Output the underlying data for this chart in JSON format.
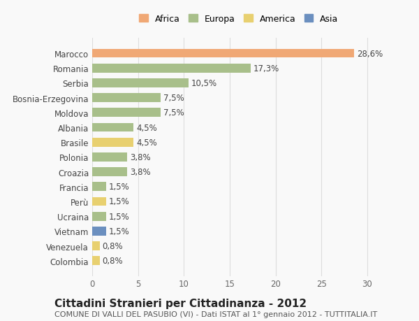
{
  "categories": [
    "Marocco",
    "Romania",
    "Serbia",
    "Bosnia-Erzegovina",
    "Moldova",
    "Albania",
    "Brasile",
    "Polonia",
    "Croazia",
    "Francia",
    "Perù",
    "Ucraina",
    "Vietnam",
    "Venezuela",
    "Colombia"
  ],
  "values": [
    28.6,
    17.3,
    10.5,
    7.5,
    7.5,
    4.5,
    4.5,
    3.8,
    3.8,
    1.5,
    1.5,
    1.5,
    1.5,
    0.8,
    0.8
  ],
  "labels": [
    "28,6%",
    "17,3%",
    "10,5%",
    "7,5%",
    "7,5%",
    "4,5%",
    "4,5%",
    "3,8%",
    "3,8%",
    "1,5%",
    "1,5%",
    "1,5%",
    "1,5%",
    "0,8%",
    "0,8%"
  ],
  "continents": [
    "Africa",
    "Europa",
    "Europa",
    "Europa",
    "Europa",
    "Europa",
    "America",
    "Europa",
    "Europa",
    "Europa",
    "America",
    "Europa",
    "Asia",
    "America",
    "America"
  ],
  "continent_colors": {
    "Africa": "#F0A875",
    "Europa": "#A8BF8A",
    "America": "#E8D070",
    "Asia": "#6B8FBF"
  },
  "legend_order": [
    "Africa",
    "Europa",
    "America",
    "Asia"
  ],
  "title": "Cittadini Stranieri per Cittadinanza - 2012",
  "subtitle": "COMUNE DI VALLI DEL PASUBIO (VI) - Dati ISTAT al 1° gennaio 2012 - TUTTITALIA.IT",
  "xlim": [
    0,
    32
  ],
  "xticks": [
    0,
    5,
    10,
    15,
    20,
    25,
    30
  ],
  "background_color": "#f9f9f9",
  "grid_color": "#dddddd",
  "bar_height": 0.6,
  "label_fontsize": 8.5,
  "tick_fontsize": 8.5,
  "title_fontsize": 11,
  "subtitle_fontsize": 8
}
